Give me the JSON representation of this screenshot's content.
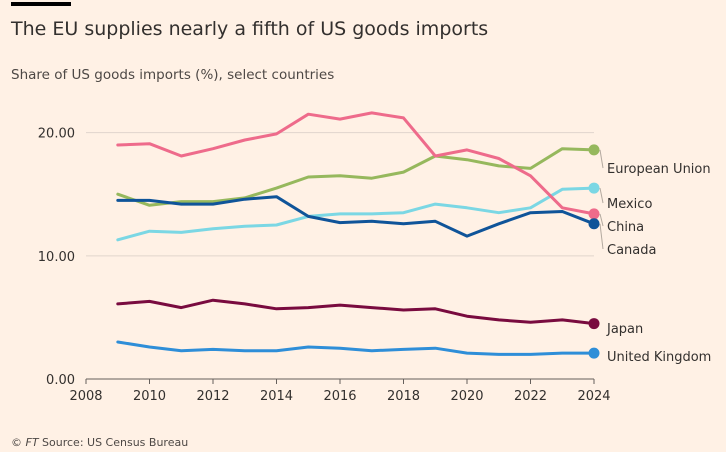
{
  "header": {
    "title": "The EU supplies nearly a fifth of US goods imports",
    "subtitle": "Share of US goods imports (%), select countries"
  },
  "footer": {
    "copyright": "© ",
    "brand": "FT",
    "source": " Source: US Census Bureau"
  },
  "chart_data": {
    "type": "line",
    "title": "The EU supplies nearly a fifth of US goods imports",
    "subtitle": "Share of US goods imports (%), select countries",
    "xlabel": "",
    "ylabel": "",
    "xlim": [
      2008,
      2024
    ],
    "ylim": [
      0,
      22
    ],
    "x_ticks": [
      2008,
      2010,
      2012,
      2014,
      2016,
      2018,
      2020,
      2022,
      2024
    ],
    "x_tick_labels": [
      "2008",
      "2010",
      "2012",
      "2014",
      "2016",
      "2018",
      "2020",
      "2022",
      "2024"
    ],
    "y_ticks": [
      0,
      10,
      20
    ],
    "y_tick_labels": [
      "0.00",
      "10.00",
      "20.00"
    ],
    "grid": "horizontal",
    "legend": "direct labels at line ends (right)",
    "x": [
      2009,
      2010,
      2011,
      2012,
      2013,
      2014,
      2015,
      2016,
      2017,
      2018,
      2019,
      2020,
      2021,
      2022,
      2023,
      2024
    ],
    "series": [
      {
        "name": "European Union",
        "color": "#96b85d",
        "values": [
          15.0,
          14.1,
          14.4,
          14.4,
          14.7,
          15.5,
          16.4,
          16.5,
          16.3,
          16.8,
          18.1,
          17.8,
          17.3,
          17.1,
          18.7,
          18.6
        ]
      },
      {
        "name": "Mexico",
        "color": "#7bd7e4",
        "values": [
          11.3,
          12.0,
          11.9,
          12.2,
          12.4,
          12.5,
          13.2,
          13.4,
          13.4,
          13.5,
          14.2,
          13.9,
          13.5,
          13.9,
          15.4,
          15.5
        ]
      },
      {
        "name": "China",
        "color": "#ee6b8b",
        "values": [
          19.0,
          19.1,
          18.1,
          18.7,
          19.4,
          19.9,
          21.5,
          21.1,
          21.6,
          21.2,
          18.1,
          18.6,
          17.9,
          16.5,
          13.9,
          13.4
        ]
      },
      {
        "name": "Canada",
        "color": "#0f5499",
        "values": [
          14.5,
          14.5,
          14.2,
          14.2,
          14.6,
          14.8,
          13.2,
          12.7,
          12.8,
          12.6,
          12.8,
          11.6,
          12.6,
          13.5,
          13.6,
          12.6
        ]
      },
      {
        "name": "Japan",
        "color": "#790b3f",
        "values": [
          6.1,
          6.3,
          5.8,
          6.4,
          6.1,
          5.7,
          5.8,
          6.0,
          5.8,
          5.6,
          5.7,
          5.1,
          4.8,
          4.6,
          4.8,
          4.5
        ]
      },
      {
        "name": "United Kingdom",
        "color": "#2e8ed8",
        "values": [
          3.0,
          2.6,
          2.3,
          2.4,
          2.3,
          2.3,
          2.6,
          2.5,
          2.3,
          2.4,
          2.5,
          2.1,
          2.0,
          2.0,
          2.1,
          2.1
        ]
      }
    ]
  }
}
